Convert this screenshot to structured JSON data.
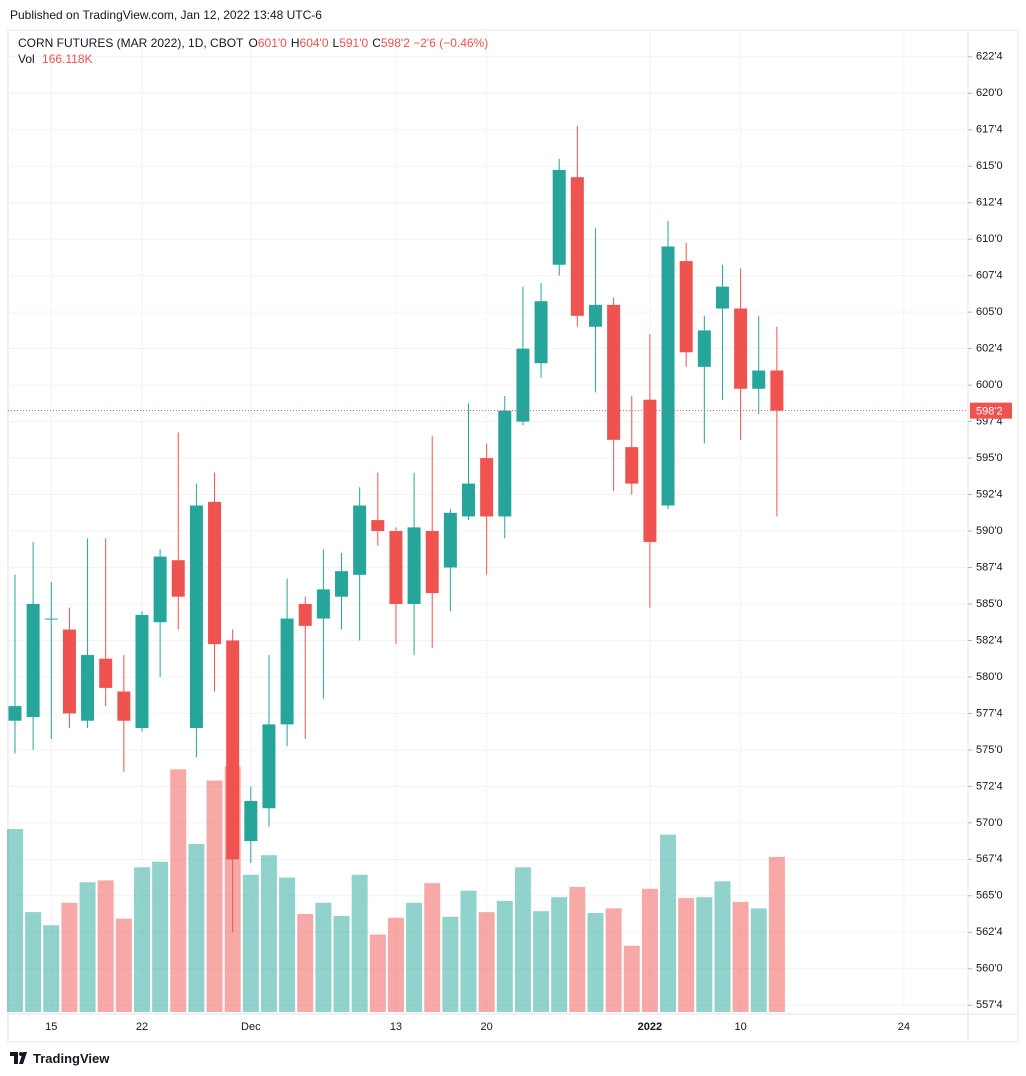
{
  "header": {
    "published": "Published on TradingView.com, Jan 12, 2022 13:48 UTC-6"
  },
  "legend": {
    "symbol": "CORN FUTURES (MAR 2022), 1D, CBOT",
    "items": [
      {
        "key": "O",
        "value": "601'0"
      },
      {
        "key": "H",
        "value": "604'0"
      },
      {
        "key": "L",
        "value": "591'0"
      },
      {
        "key": "C",
        "value": "598'2"
      }
    ],
    "change": "−2'6 (−0.46%)",
    "volume_key": "Vol",
    "volume": "166.118K"
  },
  "footer": {
    "brand": "TradingView"
  },
  "chart_data": {
    "type": "candlestick",
    "categories": [
      null,
      null,
      "15",
      null,
      null,
      null,
      null,
      "22",
      null,
      null,
      null,
      null,
      null,
      "Dec",
      null,
      null,
      null,
      null,
      null,
      null,
      null,
      "13",
      null,
      null,
      null,
      null,
      "20",
      null,
      null,
      null,
      null,
      null,
      null,
      null,
      null,
      "2022",
      null,
      null,
      null,
      null,
      "10",
      null,
      null,
      null,
      null,
      null,
      null,
      null,
      null,
      "24",
      null,
      null,
      null
    ],
    "bold_categories": [
      "2022"
    ],
    "open": [
      577,
      577.25,
      584,
      583.25,
      577,
      581.25,
      579,
      576.5,
      583.75,
      588,
      576.5,
      592,
      582.5,
      568.75,
      571,
      576.75,
      585,
      584,
      585.5,
      587,
      590.75,
      590,
      585,
      590,
      587.5,
      591,
      595,
      591,
      597.5,
      601.5,
      608.25,
      614.25,
      604,
      605.5,
      595.75,
      599,
      591.75,
      608.5,
      601.25,
      605.25,
      605.25,
      599.75,
      601,
      null,
      null,
      null,
      null,
      null,
      null,
      null,
      null,
      null,
      null
    ],
    "high": [
      587,
      589.25,
      586.5,
      584.75,
      589.5,
      589.5,
      581.5,
      584.5,
      588.75,
      596.75,
      593.25,
      594,
      583.25,
      572.5,
      581.5,
      586.75,
      585.5,
      588.75,
      588.5,
      593,
      594,
      590.25,
      594,
      596.5,
      591.5,
      598.75,
      596,
      599.25,
      606.75,
      607,
      615.5,
      617.75,
      610.75,
      606,
      599.25,
      603.5,
      611.25,
      609.75,
      604.75,
      608.25,
      608,
      604.75,
      604,
      null,
      null,
      null,
      null,
      null,
      null,
      null,
      null,
      null,
      null
    ],
    "low": [
      574.75,
      575,
      575.75,
      576.5,
      576.5,
      578,
      573.5,
      576.25,
      580,
      583.25,
      574.5,
      579,
      562.5,
      567.25,
      569.75,
      575.25,
      575.75,
      578.5,
      583.25,
      582.5,
      589,
      582.25,
      581.5,
      582,
      584.5,
      590.75,
      587,
      589.5,
      597.25,
      600.5,
      607.5,
      604,
      599.5,
      592.75,
      592.5,
      584.75,
      591.5,
      601.25,
      596,
      599,
      596.25,
      598,
      591,
      null,
      null,
      null,
      null,
      null,
      null,
      null,
      null,
      null,
      null
    ],
    "close": [
      578,
      585,
      584,
      577.5,
      581.5,
      579.25,
      577,
      584.25,
      588.25,
      585.5,
      591.75,
      582.25,
      567.5,
      571.5,
      576.75,
      584,
      583.5,
      586,
      587.25,
      591.75,
      590,
      585,
      590.25,
      585.75,
      591.25,
      593.25,
      591,
      598.25,
      602.5,
      605.75,
      614.75,
      604.75,
      605.5,
      596.25,
      593.25,
      589.25,
      609.5,
      602.25,
      603.75,
      606.75,
      599.75,
      601,
      598.25,
      null,
      null,
      null,
      null,
      null,
      null,
      null,
      null,
      null,
      null
    ],
    "volume": [
      196000,
      107000,
      93000,
      117000,
      139000,
      141000,
      100000,
      155000,
      161000,
      260000,
      180000,
      248000,
      263000,
      147000,
      168000,
      144000,
      105000,
      117000,
      103000,
      147000,
      83000,
      101000,
      117000,
      138000,
      102000,
      130000,
      107000,
      119000,
      155000,
      108000,
      123000,
      134000,
      106000,
      111000,
      71000,
      132000,
      190000,
      122000,
      123000,
      140000,
      118000,
      111000,
      166118,
      null,
      null,
      null,
      null,
      null,
      null,
      null,
      null,
      null,
      null
    ],
    "up_color": "#26a69a",
    "down_color": "#ef5350",
    "volume_up_color": "rgba(38,166,154,0.5)",
    "volume_down_color": "rgba(239,83,80,0.5)",
    "ylim": [
      556.9,
      624.2
    ],
    "yticks": [
      {
        "value": 557.5,
        "label": "557'4"
      },
      {
        "value": 560,
        "label": "560'0"
      },
      {
        "value": 562.5,
        "label": "562'4"
      },
      {
        "value": 565,
        "label": "565'0"
      },
      {
        "value": 567.5,
        "label": "567'4"
      },
      {
        "value": 570,
        "label": "570'0"
      },
      {
        "value": 572.5,
        "label": "572'4"
      },
      {
        "value": 575,
        "label": "575'0"
      },
      {
        "value": 577.5,
        "label": "577'4"
      },
      {
        "value": 580,
        "label": "580'0"
      },
      {
        "value": 582.5,
        "label": "582'4"
      },
      {
        "value": 585,
        "label": "585'0"
      },
      {
        "value": 587.5,
        "label": "587'4"
      },
      {
        "value": 590,
        "label": "590'0"
      },
      {
        "value": 592.5,
        "label": "592'4"
      },
      {
        "value": 595,
        "label": "595'0"
      },
      {
        "value": 597.5,
        "label": "597'4"
      },
      {
        "value": 600,
        "label": "600'0"
      },
      {
        "value": 602.5,
        "label": "602'4"
      },
      {
        "value": 605,
        "label": "605'0"
      },
      {
        "value": 607.5,
        "label": "607'4"
      },
      {
        "value": 610,
        "label": "610'0"
      },
      {
        "value": 612.5,
        "label": "612'4"
      },
      {
        "value": 615,
        "label": "615'0"
      },
      {
        "value": 617.5,
        "label": "617'4"
      },
      {
        "value": 620,
        "label": "620'0"
      },
      {
        "value": 622.5,
        "label": "622'4"
      }
    ],
    "last_price": {
      "value": 598.25,
      "label": "598'2",
      "color": "#ef5350"
    },
    "grid": true
  }
}
